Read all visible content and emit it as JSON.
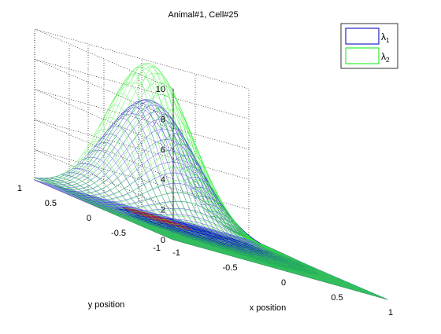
{
  "chart_data": {
    "type": "surface3d",
    "title": "Animal#1, Cell#25",
    "xlabel": "x position",
    "ylabel": "y position",
    "zlabel": "",
    "xlim": [
      -1,
      1
    ],
    "ylim": [
      -1,
      1
    ],
    "zlim": [
      0,
      10
    ],
    "xticks": [
      "-1",
      "-0.5",
      "0",
      "0.5",
      "1"
    ],
    "yticks": [
      "-1",
      "-0.5",
      "0",
      "0.5",
      "1"
    ],
    "zticks": [
      "0",
      "2",
      "4",
      "6",
      "8",
      "10"
    ],
    "grid": true,
    "legend_position": "top-right",
    "series": [
      {
        "label_base": "λ",
        "label_sub": "1",
        "color": "#1e22c8",
        "peak": 7.6,
        "peak_x": -0.05,
        "peak_y": 0.78,
        "width": 0.35
      },
      {
        "label_base": "λ",
        "label_sub": "2",
        "color": "#2cf02c",
        "peak": 10.0,
        "peak_x": -0.05,
        "peak_y": 0.8,
        "width": 0.33
      }
    ],
    "floor_color": "#8c8cf0",
    "trajectory_colors": [
      "#0a0acc",
      "#cc2222"
    ]
  }
}
